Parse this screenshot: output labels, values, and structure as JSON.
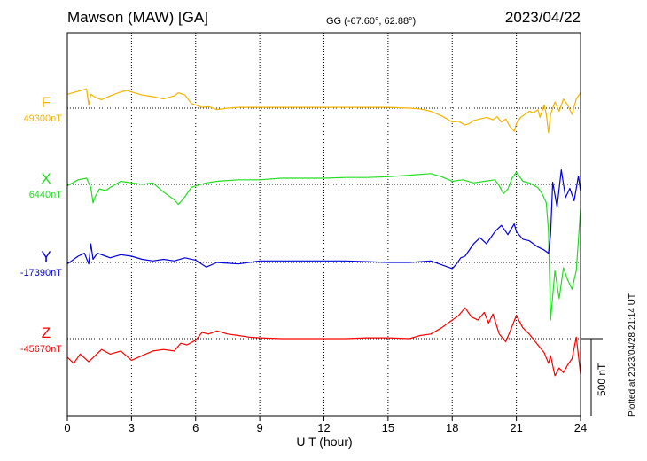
{
  "header": {
    "station": "Mawson (MAW)  [GA]",
    "coords": "GG (-67.60°,  62.88°)",
    "date": "2023/04/22"
  },
  "side_note": "Plotted at 2023/04/28 21:14 UT",
  "chart_data": {
    "type": "line",
    "xlabel": "U T (hour)",
    "xlim": [
      0,
      24
    ],
    "xticks": [
      "0",
      "3",
      "6",
      "9",
      "12",
      "15",
      "18",
      "21",
      "24"
    ],
    "grid": true,
    "scale_bar": {
      "label": "500 nT",
      "value_nT": 500
    },
    "series": [
      {
        "name": "F",
        "baseline": "49300nT",
        "baseline_nT": 49300,
        "color": "#f5b400",
        "x": [
          0,
          0.5,
          0.9,
          1.0,
          1.1,
          1.3,
          1.6,
          2.0,
          2.5,
          2.8,
          3.0,
          3.5,
          4.0,
          4.5,
          5.0,
          5.2,
          5.5,
          5.8,
          6.0,
          6.3,
          6.6,
          7.0,
          7.5,
          8.0,
          9.0,
          10.0,
          11.0,
          12.0,
          13.0,
          14.0,
          15.0,
          16.0,
          16.5,
          17.0,
          17.5,
          18.0,
          18.3,
          18.6,
          18.8,
          19.0,
          19.3,
          19.6,
          19.9,
          20.1,
          20.3,
          20.5,
          20.7,
          20.9,
          21.0,
          21.2,
          21.4,
          21.6,
          21.8,
          22.0,
          22.1,
          22.3,
          22.4,
          22.5,
          22.6,
          22.8,
          23.0,
          23.2,
          23.4,
          23.6,
          23.8,
          24.0
        ],
        "y": [
          90,
          110,
          125,
          20,
          90,
          70,
          55,
          80,
          105,
          115,
          105,
          85,
          75,
          60,
          80,
          100,
          85,
          30,
          20,
          5,
          10,
          -10,
          0,
          5,
          5,
          5,
          5,
          5,
          5,
          5,
          5,
          0,
          -5,
          -20,
          -50,
          -90,
          -85,
          -110,
          -100,
          -80,
          -70,
          -60,
          -75,
          -55,
          -90,
          -70,
          -120,
          -150,
          -100,
          -60,
          -40,
          -20,
          -30,
          -10,
          -60,
          20,
          -40,
          -160,
          -40,
          40,
          -20,
          60,
          20,
          -40,
          60,
          100
        ]
      },
      {
        "name": "X",
        "baseline": "6440nT",
        "baseline_nT": 6440,
        "color": "#22dd22",
        "x": [
          0,
          0.5,
          0.9,
          1.1,
          1.2,
          1.3,
          1.5,
          1.8,
          2.0,
          2.5,
          3.0,
          3.5,
          4.0,
          4.5,
          5.0,
          5.2,
          5.5,
          5.8,
          6.0,
          6.5,
          7.0,
          8.0,
          9.0,
          10.0,
          11.0,
          12.0,
          13.0,
          14.0,
          15.0,
          16.0,
          17.0,
          17.5,
          18.0,
          18.5,
          19.0,
          19.5,
          20.0,
          20.2,
          20.4,
          20.6,
          20.8,
          21.0,
          21.3,
          21.6,
          22.0,
          22.2,
          22.4,
          22.5,
          22.6,
          22.8,
          23.0,
          23.2,
          23.4,
          23.6,
          23.8,
          24.0
        ],
        "y": [
          -10,
          30,
          40,
          -20,
          -120,
          -80,
          -30,
          -40,
          -20,
          20,
          10,
          0,
          10,
          -50,
          -100,
          -130,
          -80,
          -20,
          -10,
          10,
          20,
          30,
          30,
          40,
          40,
          40,
          45,
          45,
          50,
          60,
          70,
          50,
          20,
          30,
          10,
          20,
          30,
          -10,
          -60,
          -30,
          40,
          80,
          20,
          10,
          -20,
          -60,
          -120,
          -300,
          -880,
          -560,
          -740,
          -540,
          -620,
          -680,
          -560,
          -160
        ]
      },
      {
        "name": "Y",
        "baseline": "-17390nT",
        "baseline_nT": -17390,
        "color": "#0000dd",
        "x": [
          0,
          0.5,
          0.8,
          1.0,
          1.1,
          1.2,
          1.4,
          1.8,
          2.0,
          2.5,
          3.0,
          3.5,
          4.0,
          4.5,
          5.0,
          5.5,
          6.0,
          6.5,
          7.0,
          8.0,
          9.0,
          10.0,
          11.0,
          12.0,
          13.0,
          14.0,
          15.0,
          16.0,
          17.0,
          18.0,
          18.2,
          18.4,
          18.6,
          18.8,
          19.0,
          19.3,
          19.6,
          20.0,
          20.3,
          20.6,
          20.9,
          21.0,
          21.3,
          21.6,
          22.0,
          22.3,
          22.5,
          22.6,
          22.7,
          22.9,
          23.1,
          23.3,
          23.5,
          23.7,
          23.9,
          24.0
        ],
        "y": [
          -10,
          40,
          60,
          -10,
          120,
          20,
          60,
          40,
          30,
          50,
          40,
          20,
          10,
          20,
          10,
          30,
          15,
          -30,
          0,
          -10,
          10,
          10,
          10,
          10,
          10,
          5,
          0,
          0,
          10,
          -40,
          -10,
          30,
          40,
          80,
          120,
          160,
          120,
          200,
          240,
          180,
          250,
          200,
          150,
          140,
          100,
          80,
          60,
          180,
          520,
          360,
          600,
          420,
          480,
          400,
          560,
          460
        ]
      },
      {
        "name": "Z",
        "baseline": "-45670nT",
        "baseline_nT": -45670,
        "color": "#ff0000",
        "x": [
          0,
          0.3,
          0.6,
          1.0,
          1.3,
          1.6,
          2.0,
          2.5,
          3.0,
          3.5,
          4.0,
          4.5,
          5.0,
          5.3,
          5.6,
          6.0,
          6.3,
          6.6,
          7.0,
          7.5,
          8.0,
          8.5,
          9.0,
          10.0,
          11.0,
          12.0,
          13.0,
          14.0,
          15.0,
          16.0,
          16.5,
          17.0,
          17.5,
          18.0,
          18.3,
          18.6,
          18.9,
          19.2,
          19.5,
          19.7,
          19.9,
          20.2,
          20.5,
          20.8,
          21.0,
          21.3,
          21.6,
          22.0,
          22.3,
          22.5,
          22.6,
          22.8,
          23.0,
          23.2,
          23.4,
          23.6,
          23.8,
          24.0
        ],
        "y": [
          -120,
          -160,
          -100,
          -150,
          -110,
          -70,
          -100,
          -80,
          -140,
          -110,
          -80,
          -70,
          -80,
          -30,
          -40,
          -10,
          40,
          30,
          50,
          30,
          20,
          10,
          5,
          0,
          0,
          0,
          0,
          5,
          5,
          0,
          20,
          30,
          70,
          120,
          150,
          200,
          140,
          120,
          170,
          100,
          160,
          30,
          -20,
          80,
          150,
          70,
          30,
          -40,
          -90,
          -160,
          -110,
          -240,
          -190,
          -220,
          -170,
          -130,
          10,
          -230
        ]
      }
    ]
  }
}
